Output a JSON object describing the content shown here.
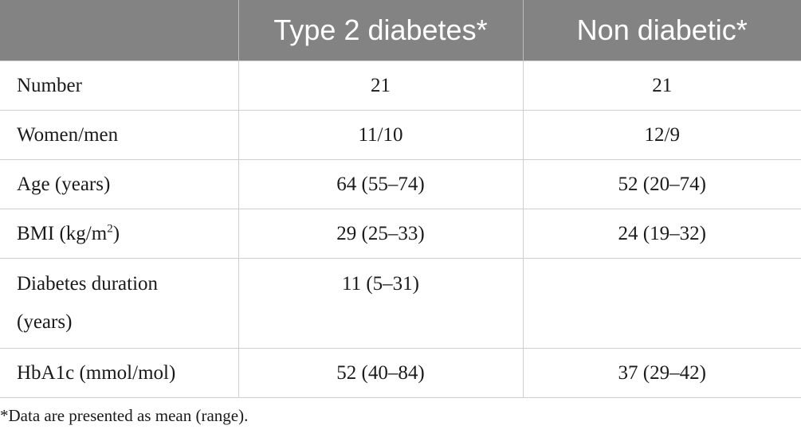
{
  "table": {
    "headers": [
      "",
      "Type 2 diabetes*",
      "Non diabetic*"
    ],
    "rows": [
      {
        "label": "Number",
        "t2d": "21",
        "nd": "21"
      },
      {
        "label": "Women/men",
        "t2d": "11/10",
        "nd": "12/9"
      },
      {
        "label": "Age (years)",
        "t2d": "64 (55–74)",
        "nd": "52 (20–74)"
      },
      {
        "label_pre": "BMI (kg/m",
        "label_sup": "2",
        "label_post": ")",
        "t2d": "29 (25–33)",
        "nd": "24 (19–32)"
      },
      {
        "label_line1": "Diabetes duration",
        "label_line2": "(years)",
        "t2d": "11 (5–31)",
        "nd": ""
      },
      {
        "label": "HbA1c (mmol/mol)",
        "t2d": "52 (40–84)",
        "nd": "37 (29–42)"
      }
    ]
  },
  "footnote": "*Data are presented as mean (range)."
}
